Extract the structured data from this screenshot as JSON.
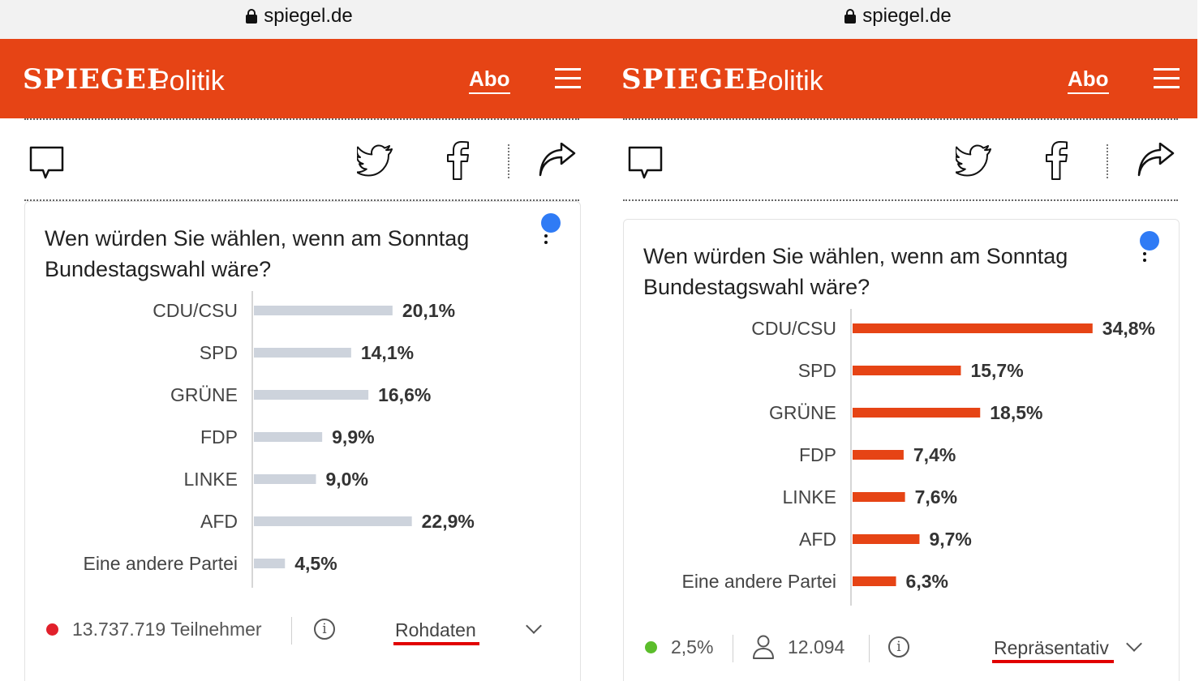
{
  "browser": {
    "url": "spiegel.de"
  },
  "header": {
    "logo": "SPIEGEL",
    "section": "Politik",
    "abo_label": "Abo"
  },
  "colors": {
    "brand": "#e64415",
    "bar_raw": "#cdd3dc",
    "bar_representative": "#e64415",
    "link_underline": "#e10000"
  },
  "icons": [
    "lock-icon",
    "menu-icon",
    "comment-icon",
    "twitter-icon",
    "facebook-icon",
    "share-icon",
    "info-icon",
    "person-icon",
    "chevron-down-icon"
  ],
  "panels": [
    {
      "question": "Wen würden Sie wählen, wenn am Sonntag Bundestagswahl wäre?",
      "status_color": "#e1202b",
      "participants": "13.737.719 Teilnehmer",
      "mode": "Rohdaten"
    },
    {
      "question": "Wen würden Sie wählen, wenn am Sonntag Bundestagswahl wäre?",
      "status_color": "#5bbd2b",
      "error_margin": "2,5%",
      "respondents": "12.094",
      "mode": "Repräsentativ"
    }
  ],
  "chart_data": [
    {
      "type": "bar",
      "orientation": "horizontal",
      "categories": [
        "CDU/CSU",
        "SPD",
        "GRÜNE",
        "FDP",
        "LINKE",
        "AFD",
        "Eine andere Partei"
      ],
      "values": [
        20.1,
        14.1,
        16.6,
        9.9,
        9.0,
        22.9,
        4.5
      ],
      "value_labels": [
        "20,1%",
        "14,1%",
        "16,6%",
        "9,9%",
        "9,0%",
        "22,9%",
        "4,5%"
      ],
      "unit": "%",
      "color": "#cdd3dc"
    },
    {
      "type": "bar",
      "orientation": "horizontal",
      "categories": [
        "CDU/CSU",
        "SPD",
        "GRÜNE",
        "FDP",
        "LINKE",
        "AFD",
        "Eine andere Partei"
      ],
      "values": [
        34.8,
        15.7,
        18.5,
        7.4,
        7.6,
        9.7,
        6.3
      ],
      "value_labels": [
        "34,8%",
        "15,7%",
        "18,5%",
        "7,4%",
        "7,6%",
        "9,7%",
        "6,3%"
      ],
      "unit": "%",
      "color": "#e64415"
    }
  ]
}
